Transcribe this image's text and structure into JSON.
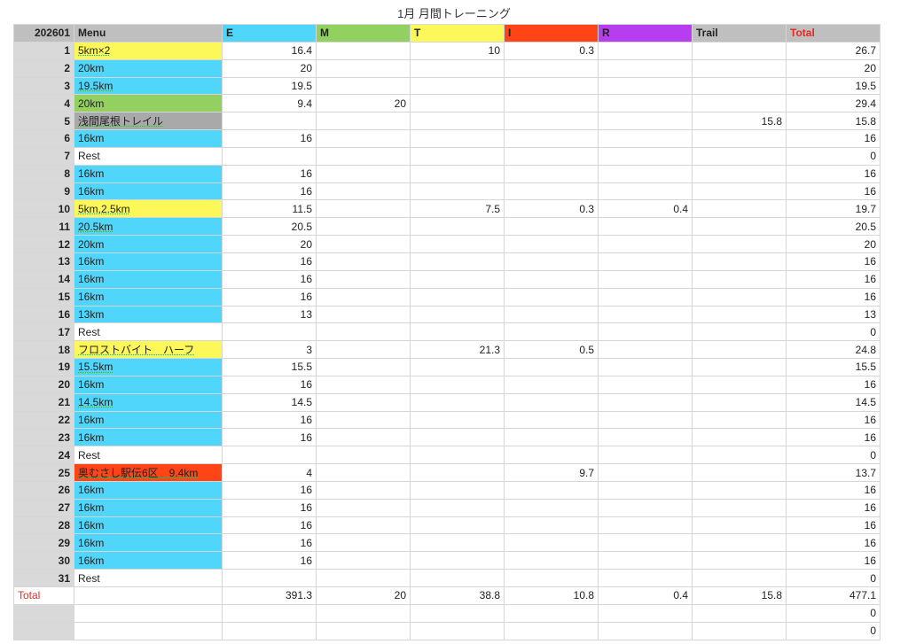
{
  "title": "1月 月間トレーニング",
  "header": {
    "id": "202601",
    "menu": "Menu",
    "cols": [
      "E",
      "M",
      "T",
      "I",
      "R",
      "Trail",
      "Total"
    ]
  },
  "colors": {
    "E": "#4fd6fa",
    "M": "#92d160",
    "T": "#fdf859",
    "I": "#ff4416",
    "R": "#b73ef0",
    "Trail": "#bfbfbf",
    "Total": "#bfbfbf",
    "total_text": "#e8281e",
    "gray": "#a9a9a9"
  },
  "rows": [
    {
      "day": "1",
      "menu": "5km×2",
      "color": "#fdf859",
      "vals": [
        "16.4",
        "",
        "10",
        "0.3",
        "",
        "",
        "26.7"
      ]
    },
    {
      "day": "2",
      "menu": "20km",
      "color": "#4fd6fa",
      "vals": [
        "20",
        "",
        "",
        "",
        "",
        "",
        "20"
      ]
    },
    {
      "day": "3",
      "menu": "19.5km",
      "color": "#4fd6fa",
      "vals": [
        "19.5",
        "",
        "",
        "",
        "",
        "",
        "19.5"
      ]
    },
    {
      "day": "4",
      "menu": "20km",
      "color": "#92d160",
      "vals": [
        "9.4",
        "20",
        "",
        "",
        "",
        "",
        "29.4"
      ]
    },
    {
      "day": "5",
      "menu": "浅間尾根トレイル",
      "color": "#a9a9a9",
      "vals": [
        "",
        "",
        "",
        "",
        "",
        "15.8",
        "15.8"
      ]
    },
    {
      "day": "6",
      "menu": "16km",
      "color": "#4fd6fa",
      "vals": [
        "16",
        "",
        "",
        "",
        "",
        "",
        "16"
      ]
    },
    {
      "day": "7",
      "menu": "Rest",
      "color": "#ffffff",
      "vals": [
        "",
        "",
        "",
        "",
        "",
        "",
        "0"
      ]
    },
    {
      "day": "8",
      "menu": "16km",
      "color": "#4fd6fa",
      "vals": [
        "16",
        "",
        "",
        "",
        "",
        "",
        "16"
      ]
    },
    {
      "day": "9",
      "menu": "16km",
      "color": "#4fd6fa",
      "vals": [
        "16",
        "",
        "",
        "",
        "",
        "",
        "16"
      ]
    },
    {
      "day": "10",
      "menu": "5km,2.5km",
      "color": "#fdf859",
      "vals": [
        "11.5",
        "",
        "7.5",
        "0.3",
        "0.4",
        "",
        "19.7"
      ]
    },
    {
      "day": "11",
      "menu": "20.5km",
      "color": "#4fd6fa",
      "vals": [
        "20.5",
        "",
        "",
        "",
        "",
        "",
        "20.5"
      ]
    },
    {
      "day": "12",
      "menu": "20km",
      "color": "#4fd6fa",
      "vals": [
        "20",
        "",
        "",
        "",
        "",
        "",
        "20"
      ]
    },
    {
      "day": "13",
      "menu": "16km",
      "color": "#4fd6fa",
      "vals": [
        "16",
        "",
        "",
        "",
        "",
        "",
        "16"
      ]
    },
    {
      "day": "14",
      "menu": "16km",
      "color": "#4fd6fa",
      "vals": [
        "16",
        "",
        "",
        "",
        "",
        "",
        "16"
      ]
    },
    {
      "day": "15",
      "menu": "16km",
      "color": "#4fd6fa",
      "vals": [
        "16",
        "",
        "",
        "",
        "",
        "",
        "16"
      ]
    },
    {
      "day": "16",
      "menu": "13km",
      "color": "#4fd6fa",
      "vals": [
        "13",
        "",
        "",
        "",
        "",
        "",
        "13"
      ]
    },
    {
      "day": "17",
      "menu": "Rest",
      "color": "#ffffff",
      "vals": [
        "",
        "",
        "",
        "",
        "",
        "",
        "0"
      ]
    },
    {
      "day": "18",
      "menu": "フロストバイト　ハーフ",
      "color": "#fdf859",
      "vals": [
        "3",
        "",
        "21.3",
        "0.5",
        "",
        "",
        "24.8"
      ]
    },
    {
      "day": "19",
      "menu": "15.5km",
      "color": "#4fd6fa",
      "vals": [
        "15.5",
        "",
        "",
        "",
        "",
        "",
        "15.5"
      ]
    },
    {
      "day": "20",
      "menu": "16km",
      "color": "#4fd6fa",
      "vals": [
        "16",
        "",
        "",
        "",
        "",
        "",
        "16"
      ]
    },
    {
      "day": "21",
      "menu": "14.5km",
      "color": "#4fd6fa",
      "vals": [
        "14.5",
        "",
        "",
        "",
        "",
        "",
        "14.5"
      ]
    },
    {
      "day": "22",
      "menu": "16km",
      "color": "#4fd6fa",
      "vals": [
        "16",
        "",
        "",
        "",
        "",
        "",
        "16"
      ]
    },
    {
      "day": "23",
      "menu": "16km",
      "color": "#4fd6fa",
      "vals": [
        "16",
        "",
        "",
        "",
        "",
        "",
        "16"
      ]
    },
    {
      "day": "24",
      "menu": "Rest",
      "color": "#ffffff",
      "vals": [
        "",
        "",
        "",
        "",
        "",
        "",
        "0"
      ]
    },
    {
      "day": "25",
      "menu": "奥むさし駅伝6区　9.4km",
      "color": "#ff4416",
      "vals": [
        "4",
        "",
        "",
        "9.7",
        "",
        "",
        "13.7"
      ]
    },
    {
      "day": "26",
      "menu": "16km",
      "color": "#4fd6fa",
      "vals": [
        "16",
        "",
        "",
        "",
        "",
        "",
        "16"
      ]
    },
    {
      "day": "27",
      "menu": "16km",
      "color": "#4fd6fa",
      "vals": [
        "16",
        "",
        "",
        "",
        "",
        "",
        "16"
      ]
    },
    {
      "day": "28",
      "menu": "16km",
      "color": "#4fd6fa",
      "vals": [
        "16",
        "",
        "",
        "",
        "",
        "",
        "16"
      ]
    },
    {
      "day": "29",
      "menu": "16km",
      "color": "#4fd6fa",
      "vals": [
        "16",
        "",
        "",
        "",
        "",
        "",
        "16"
      ]
    },
    {
      "day": "30",
      "menu": "16km",
      "color": "#4fd6fa",
      "vals": [
        "16",
        "",
        "",
        "",
        "",
        "",
        "16"
      ]
    },
    {
      "day": "31",
      "menu": "Rest",
      "color": "#ffffff",
      "vals": [
        "",
        "",
        "",
        "",
        "",
        "",
        "0"
      ]
    }
  ],
  "total": {
    "label": "Total",
    "vals": [
      "391.3",
      "20",
      "38.8",
      "10.8",
      "0.4",
      "15.8",
      "477.1"
    ]
  },
  "extra_rows": [
    {
      "vals": [
        "",
        "",
        "",
        "",
        "",
        "",
        "0"
      ]
    },
    {
      "vals": [
        "",
        "",
        "",
        "",
        "",
        "",
        "0"
      ]
    }
  ]
}
